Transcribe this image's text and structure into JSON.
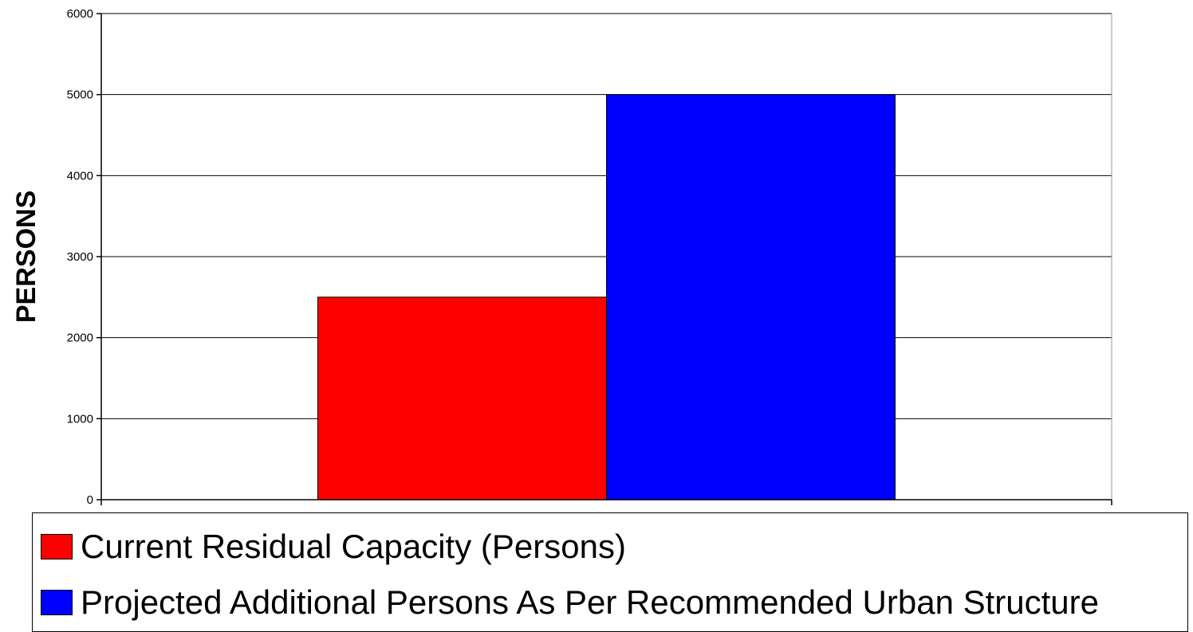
{
  "chart_data": {
    "type": "bar",
    "title": "",
    "xlabel": "",
    "ylabel": "PERSONS",
    "ylim": [
      0,
      6000
    ],
    "yticks": [
      0,
      1000,
      2000,
      3000,
      4000,
      5000,
      6000
    ],
    "grid": true,
    "legend_position": "bottom",
    "categories": [
      ""
    ],
    "series": [
      {
        "name": "Current Residual Capacity (Persons)",
        "values": [
          2500
        ],
        "color": "#ff0000"
      },
      {
        "name": "Projected Additional Persons As Per Recommended Urban Structure",
        "values": [
          5000
        ],
        "color": "#0000ff"
      }
    ]
  }
}
